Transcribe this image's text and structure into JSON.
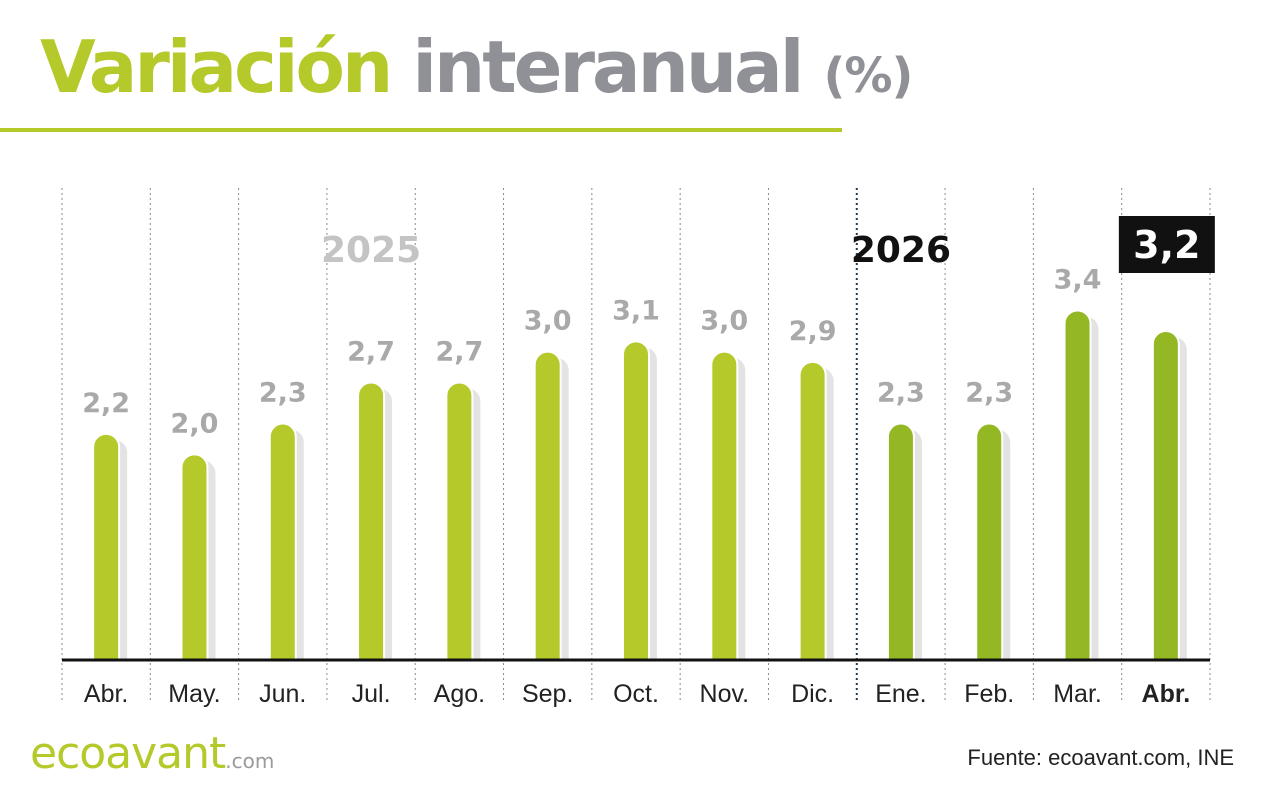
{
  "header": {
    "title_part1": "Variación",
    "title_part2": "interanual",
    "title_part3": "(%)"
  },
  "footer": {
    "brand": "ecoavant",
    "brand_tld": ".com",
    "source": "Fuente: ecoavant.com, INE"
  },
  "colors": {
    "accent_green": "#b5c92a",
    "dark_green": "#93b824",
    "grey_text": "#8f9196",
    "shadow": "#e3e3e3",
    "axis": "#111111"
  },
  "chart_data": {
    "type": "bar",
    "title": "Variación interanual (%)",
    "categories": [
      "Abr.",
      "May.",
      "Jun.",
      "Jul.",
      "Ago.",
      "Sep.",
      "Oct.",
      "Nov.",
      "Dic.",
      "Ene.",
      "Feb.",
      "Mar.",
      "Abr."
    ],
    "values": [
      2.2,
      2.0,
      2.3,
      2.7,
      2.7,
      3.0,
      3.1,
      3.0,
      2.9,
      2.3,
      2.3,
      3.4,
      3.2
    ],
    "value_labels": [
      "2,2",
      "2,0",
      "2,3",
      "2,7",
      "2,7",
      "3,0",
      "3,1",
      "3,0",
      "2,9",
      "2,3",
      "2,3",
      "3,4",
      "3,2"
    ],
    "year_groups": [
      {
        "label": "2025",
        "start": 0,
        "end": 8
      },
      {
        "label": "2026",
        "start": 9,
        "end": 12
      }
    ],
    "highlight_index": 12,
    "ylim": [
      0,
      3.6
    ],
    "grid": "vertical dotted separators",
    "legend": "none"
  }
}
